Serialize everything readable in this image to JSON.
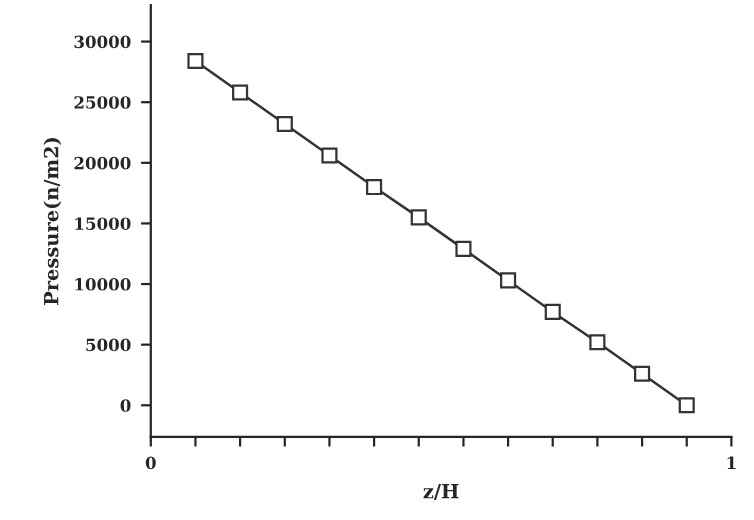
{
  "chart_data": {
    "type": "line",
    "xlabel": "z/H",
    "ylabel": "Pressure(n/m2)",
    "x": [
      0.0769,
      0.1538,
      0.2308,
      0.3077,
      0.3846,
      0.4615,
      0.5385,
      0.6154,
      0.6923,
      0.7692,
      0.8462,
      0.9231
    ],
    "series": [
      {
        "color": "#333333",
        "values": [
          28400,
          25800,
          23200,
          20600,
          18000,
          15500,
          12900,
          10300,
          7700,
          5200,
          2600,
          0
        ]
      }
    ],
    "marker": "square",
    "line_style": "solid",
    "grid": false,
    "xlim": [
      0,
      1
    ],
    "xticks": [
      {
        "value": 0,
        "label": "0"
      },
      {
        "value": 0.0769,
        "label": null
      },
      {
        "value": 0.1538,
        "label": null
      },
      {
        "value": 0.2308,
        "label": null
      },
      {
        "value": 0.3077,
        "label": null
      },
      {
        "value": 0.3846,
        "label": null
      },
      {
        "value": 0.4615,
        "label": null
      },
      {
        "value": 0.5385,
        "label": null
      },
      {
        "value": 0.6154,
        "label": null
      },
      {
        "value": 0.6923,
        "label": null
      },
      {
        "value": 0.7692,
        "label": null
      },
      {
        "value": 0.8462,
        "label": null
      },
      {
        "value": 0.9231,
        "label": null
      },
      {
        "value": 1,
        "label": "1"
      }
    ],
    "ylim": [
      -2600,
      33000
    ],
    "yticks": [
      0,
      5000,
      10000,
      15000,
      20000,
      25000,
      30000
    ]
  }
}
